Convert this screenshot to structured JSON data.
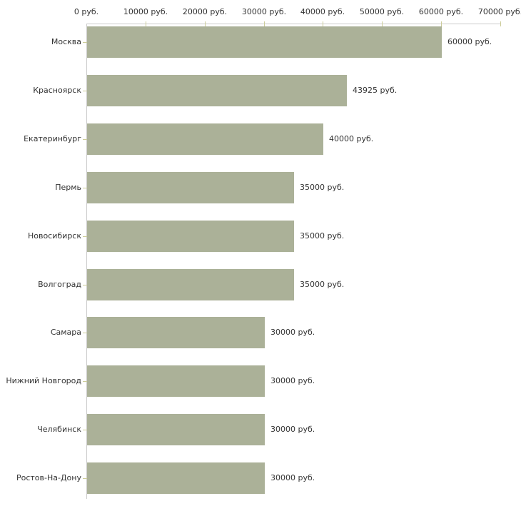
{
  "chart_data": {
    "type": "bar",
    "orientation": "horizontal",
    "title": "",
    "xlabel": "",
    "ylabel": "",
    "unit": "руб.",
    "xlim": [
      0,
      70000
    ],
    "grid": false,
    "legend": null,
    "categories": [
      "Москва",
      "Красноярск",
      "Екатеринбург",
      "Пермь",
      "Новосибирск",
      "Волгоград",
      "Самара",
      "Нижний Новгород",
      "Челябинск",
      "Ростов-На-Дону"
    ],
    "values": [
      60000,
      43925,
      40000,
      35000,
      35000,
      35000,
      30000,
      30000,
      30000,
      30000
    ],
    "value_labels": [
      "60000 руб.",
      "43925 руб.",
      "40000 руб.",
      "35000 руб.",
      "35000 руб.",
      "35000 руб.",
      "30000 руб.",
      "30000 руб.",
      "30000 руб.",
      "30000 руб."
    ],
    "x_tick_values": [
      0,
      10000,
      20000,
      30000,
      40000,
      50000,
      60000,
      70000
    ],
    "x_tick_labels": [
      "0 руб.",
      "10000 руб.",
      "20000 руб.",
      "30000 руб.",
      "40000 руб.",
      "50000 руб.",
      "60000 руб.",
      "70000 руб."
    ],
    "colors": {
      "bar": "#abb198",
      "axis_line": "#cccccc",
      "tick": "#cccc99",
      "text": "#333333",
      "background": "#ffffff"
    }
  }
}
